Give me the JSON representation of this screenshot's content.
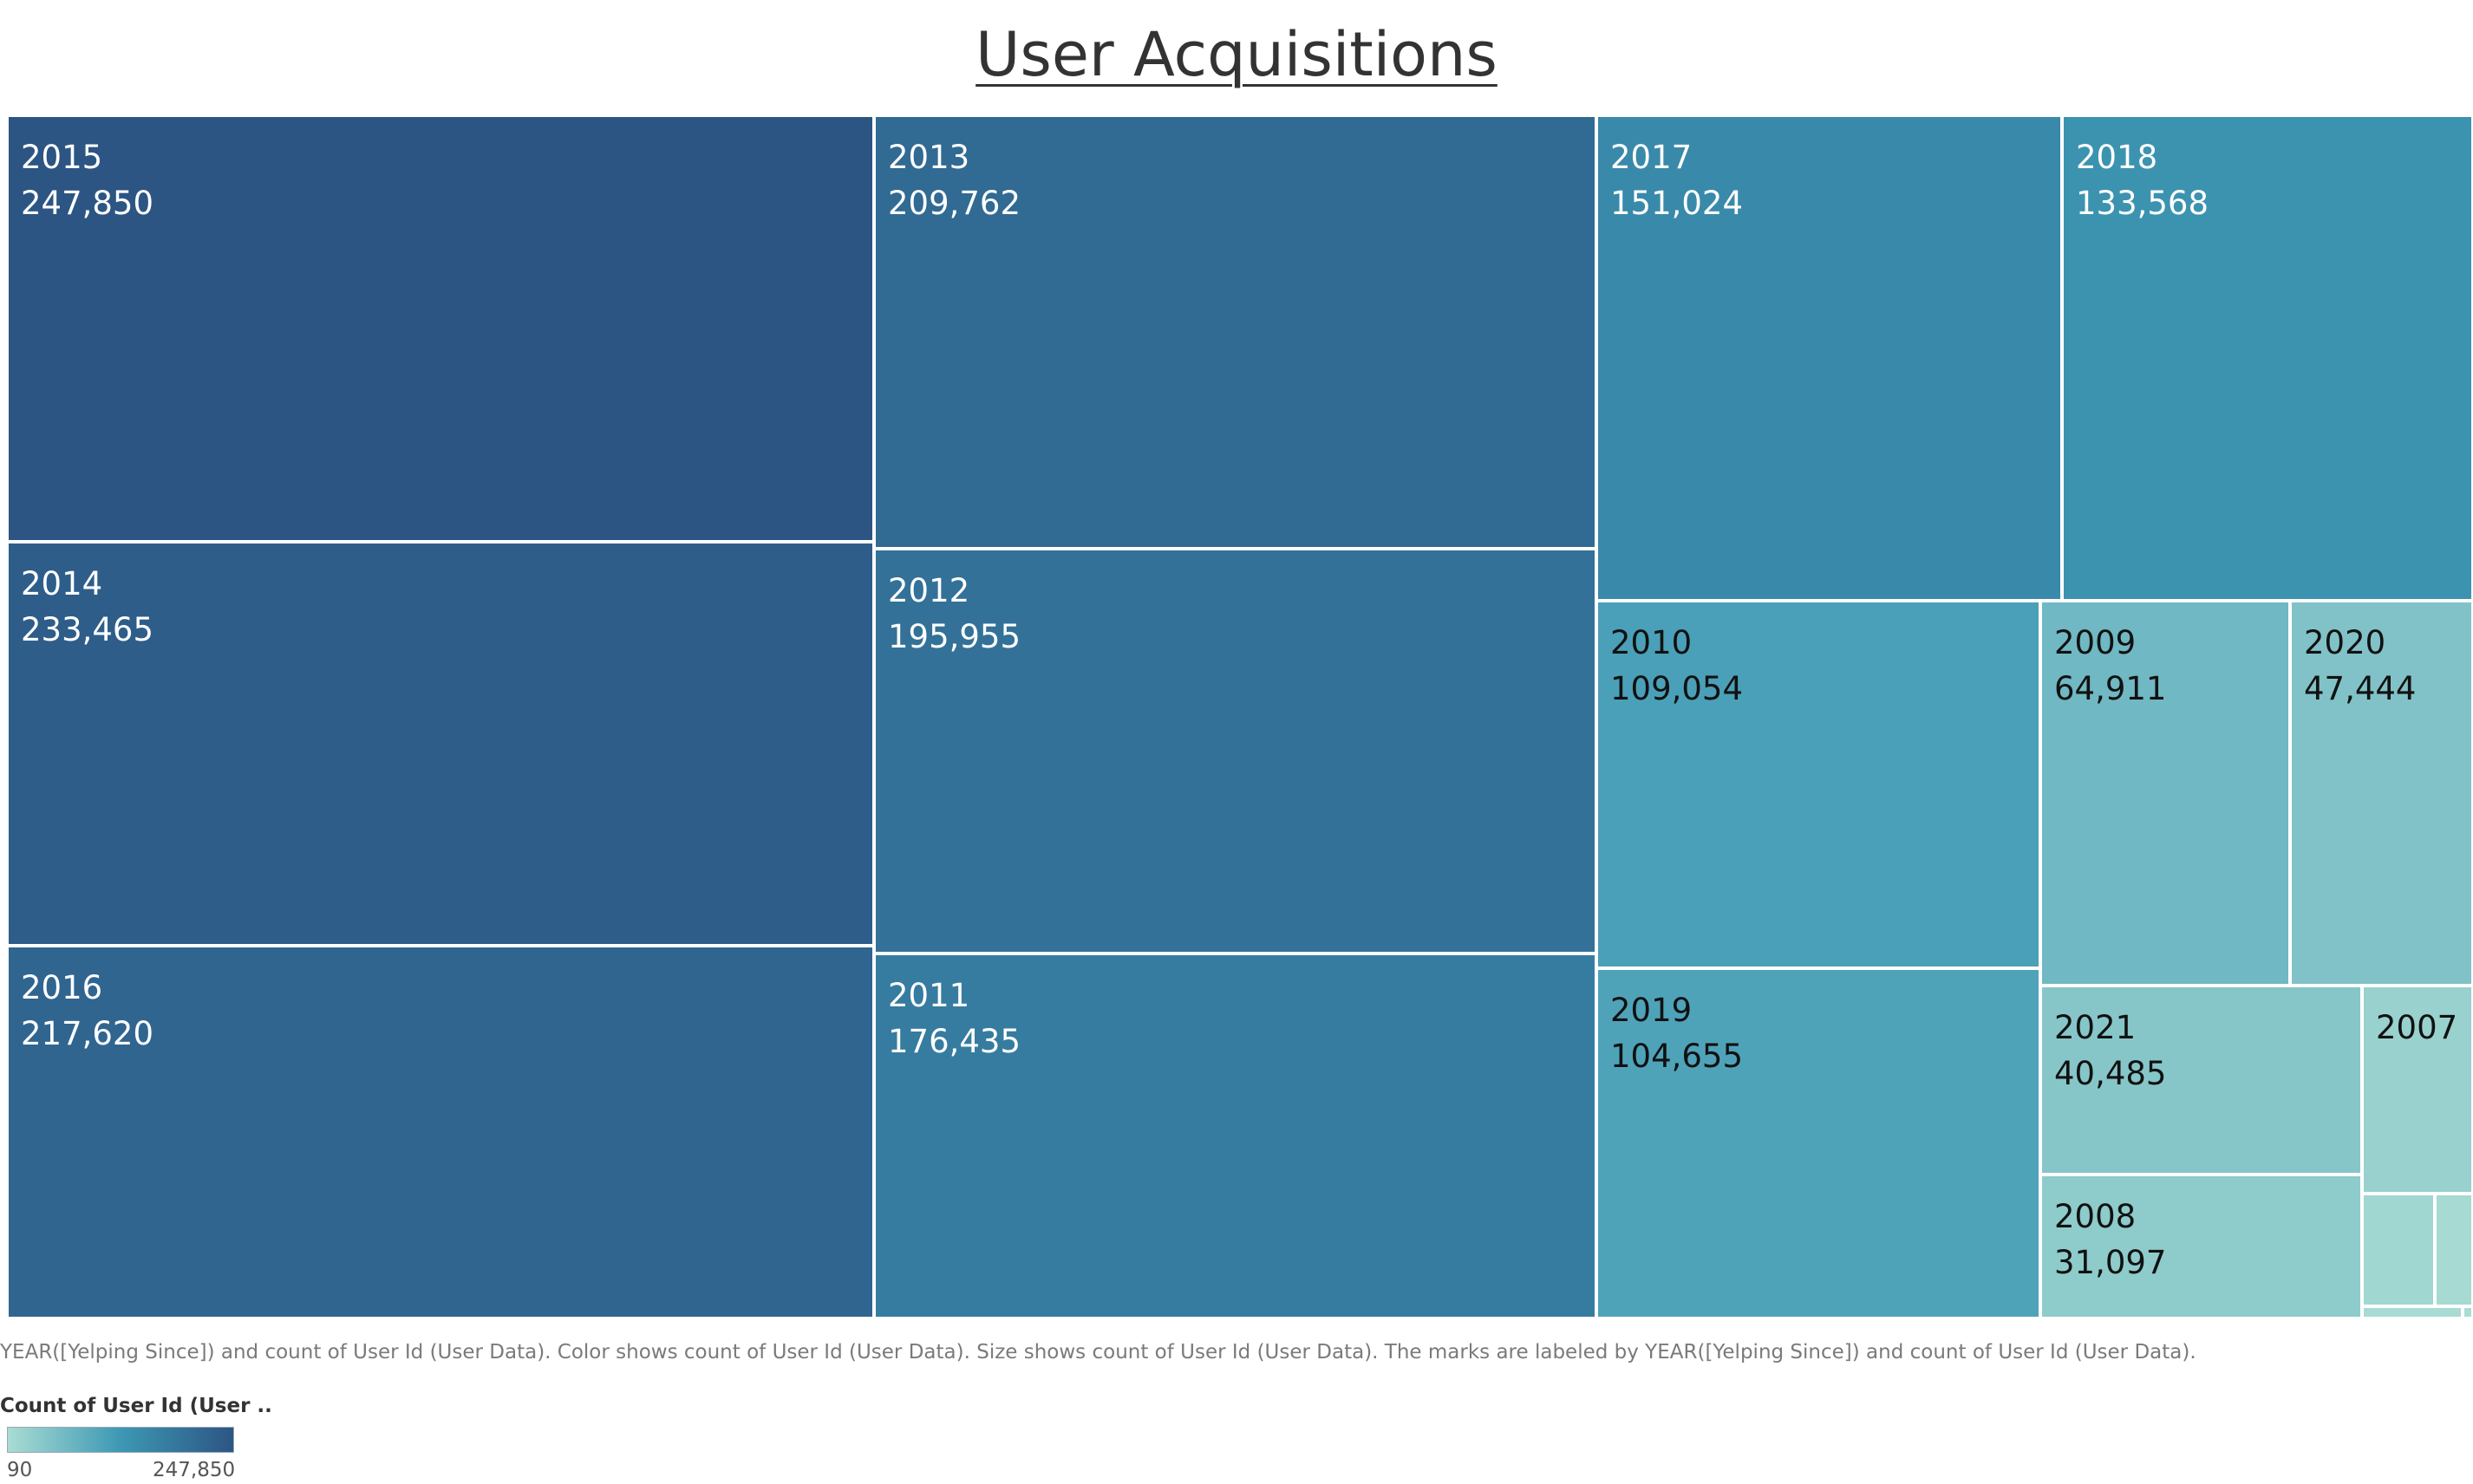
{
  "chart_data": {
    "type": "treemap",
    "title": "User Acquisitions",
    "caption": "YEAR([Yelping Since]) and count of User Id (User Data).  Color shows count of User Id (User Data).  Size shows count of User Id (User Data).  The marks are labeled by YEAR([Yelping Since]) and count of User Id (User Data).",
    "legend": {
      "title": "Count of User Id (User ..",
      "min_label": "90",
      "max_label": "247,850",
      "min": 90,
      "max": 247850,
      "colors": [
        "#a9dcd3",
        "#3d98b4",
        "#2c5584"
      ]
    },
    "items": [
      {
        "year": "2015",
        "count": 247850,
        "label": "247,850"
      },
      {
        "year": "2014",
        "count": 233465,
        "label": "233,465"
      },
      {
        "year": "2016",
        "count": 217620,
        "label": "217,620"
      },
      {
        "year": "2013",
        "count": 209762,
        "label": "209,762"
      },
      {
        "year": "2012",
        "count": 195955,
        "label": "195,955"
      },
      {
        "year": "2011",
        "count": 176435,
        "label": "176,435"
      },
      {
        "year": "2017",
        "count": 151024,
        "label": "151,024"
      },
      {
        "year": "2018",
        "count": 133568,
        "label": "133,568"
      },
      {
        "year": "2010",
        "count": 109054,
        "label": "109,054"
      },
      {
        "year": "2019",
        "count": 104655,
        "label": "104,655"
      },
      {
        "year": "2009",
        "count": 64911,
        "label": "64,911"
      },
      {
        "year": "2020",
        "count": 47444,
        "label": "47,444"
      },
      {
        "year": "2021",
        "count": 40485,
        "label": "40,485"
      },
      {
        "year": "2008",
        "count": 31097,
        "label": "31,097"
      },
      {
        "year": "2007",
        "count": null,
        "label": ""
      },
      {
        "year": "",
        "count": null,
        "label": ""
      },
      {
        "year": "",
        "count": null,
        "label": ""
      },
      {
        "year": "",
        "count": null,
        "label": ""
      },
      {
        "year": "",
        "count": 90,
        "label": ""
      }
    ]
  }
}
